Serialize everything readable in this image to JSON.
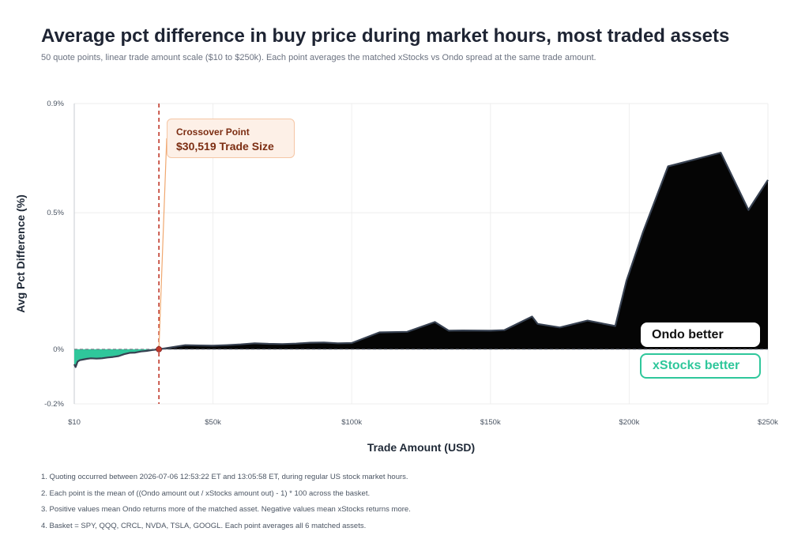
{
  "title": "Average pct difference in buy price during market hours, most traded assets",
  "subtitle": "50 quote points, linear trade amount scale ($10 to $250k). Each point averages the matched xStocks vs Ondo spread at the same trade amount.",
  "annotation": {
    "line1": "Crossover Point",
    "line2": "$30,519 Trade Size",
    "x": 30519
  },
  "region_labels": {
    "positive": "Ondo better",
    "negative": "xStocks better"
  },
  "colors": {
    "positive_fill": "#050505",
    "positive_stroke": "#374151",
    "negative_fill": "#2fc79b",
    "negative_stroke": "#1f2937",
    "crossover_line": "#c0392b",
    "callout_connector": "#f0a870",
    "grid": "#eeeeee"
  },
  "notes": [
    "1. Quoting occurred between 2026-07-06 12:53:22 ET and 13:05:58 ET, during regular US stock market hours.",
    "2. Each point is the mean of ((Ondo amount out / xStocks amount out) - 1) * 100 across the basket.",
    "3. Positive values mean Ondo returns more of the matched asset. Negative values mean xStocks returns more.",
    "4. Basket = SPY, QQQ, CRCL, NVDA, TSLA, GOOGL. Each point averages all 6 matched assets."
  ],
  "chart_data": {
    "type": "area",
    "title": "Average pct difference in buy price during market hours, most traded assets",
    "xlabel": "Trade Amount (USD)",
    "ylabel": "Avg Pct Difference (%)",
    "xlim": [
      10,
      250000
    ],
    "ylim": [
      -0.2,
      0.9
    ],
    "x_ticks": [
      {
        "value": 10,
        "label": "$10"
      },
      {
        "value": 50000,
        "label": "$50k"
      },
      {
        "value": 100000,
        "label": "$100k"
      },
      {
        "value": 150000,
        "label": "$150k"
      },
      {
        "value": 200000,
        "label": "$200k"
      },
      {
        "value": 250000,
        "label": "$250k"
      }
    ],
    "y_ticks": [
      {
        "value": -0.2,
        "label": "-0.2%"
      },
      {
        "value": 0,
        "label": "0%"
      },
      {
        "value": 0.5,
        "label": "0.5%"
      },
      {
        "value": 0.9,
        "label": "0.9%"
      }
    ],
    "grid": true,
    "series": [
      {
        "x": [
          10,
          500,
          1200,
          2000,
          3000,
          4500,
          6000,
          8000,
          10000,
          12000,
          14000,
          16000,
          18000,
          20000,
          22000,
          24000,
          26000,
          28000,
          30519,
          35000,
          40000,
          45000,
          50000,
          55000,
          60000,
          65000,
          70000,
          75000,
          80000,
          85000,
          90000,
          95000,
          100000,
          110000,
          120000,
          130000,
          135000,
          140000,
          150000,
          155000,
          165000,
          167000,
          175000,
          185000,
          195000,
          199000,
          205000,
          214000,
          233000,
          243000,
          250000
        ],
        "y": [
          -0.055,
          -0.065,
          -0.045,
          -0.04,
          -0.038,
          -0.035,
          -0.033,
          -0.034,
          -0.033,
          -0.03,
          -0.028,
          -0.025,
          -0.018,
          -0.013,
          -0.012,
          -0.008,
          -0.006,
          -0.003,
          0.0,
          0.007,
          0.015,
          0.014,
          0.013,
          0.015,
          0.018,
          0.022,
          0.02,
          0.019,
          0.021,
          0.024,
          0.025,
          0.022,
          0.023,
          0.062,
          0.064,
          0.1,
          0.068,
          0.069,
          0.068,
          0.07,
          0.12,
          0.093,
          0.08,
          0.105,
          0.085,
          0.25,
          0.43,
          0.67,
          0.72,
          0.51,
          0.62
        ]
      }
    ]
  }
}
